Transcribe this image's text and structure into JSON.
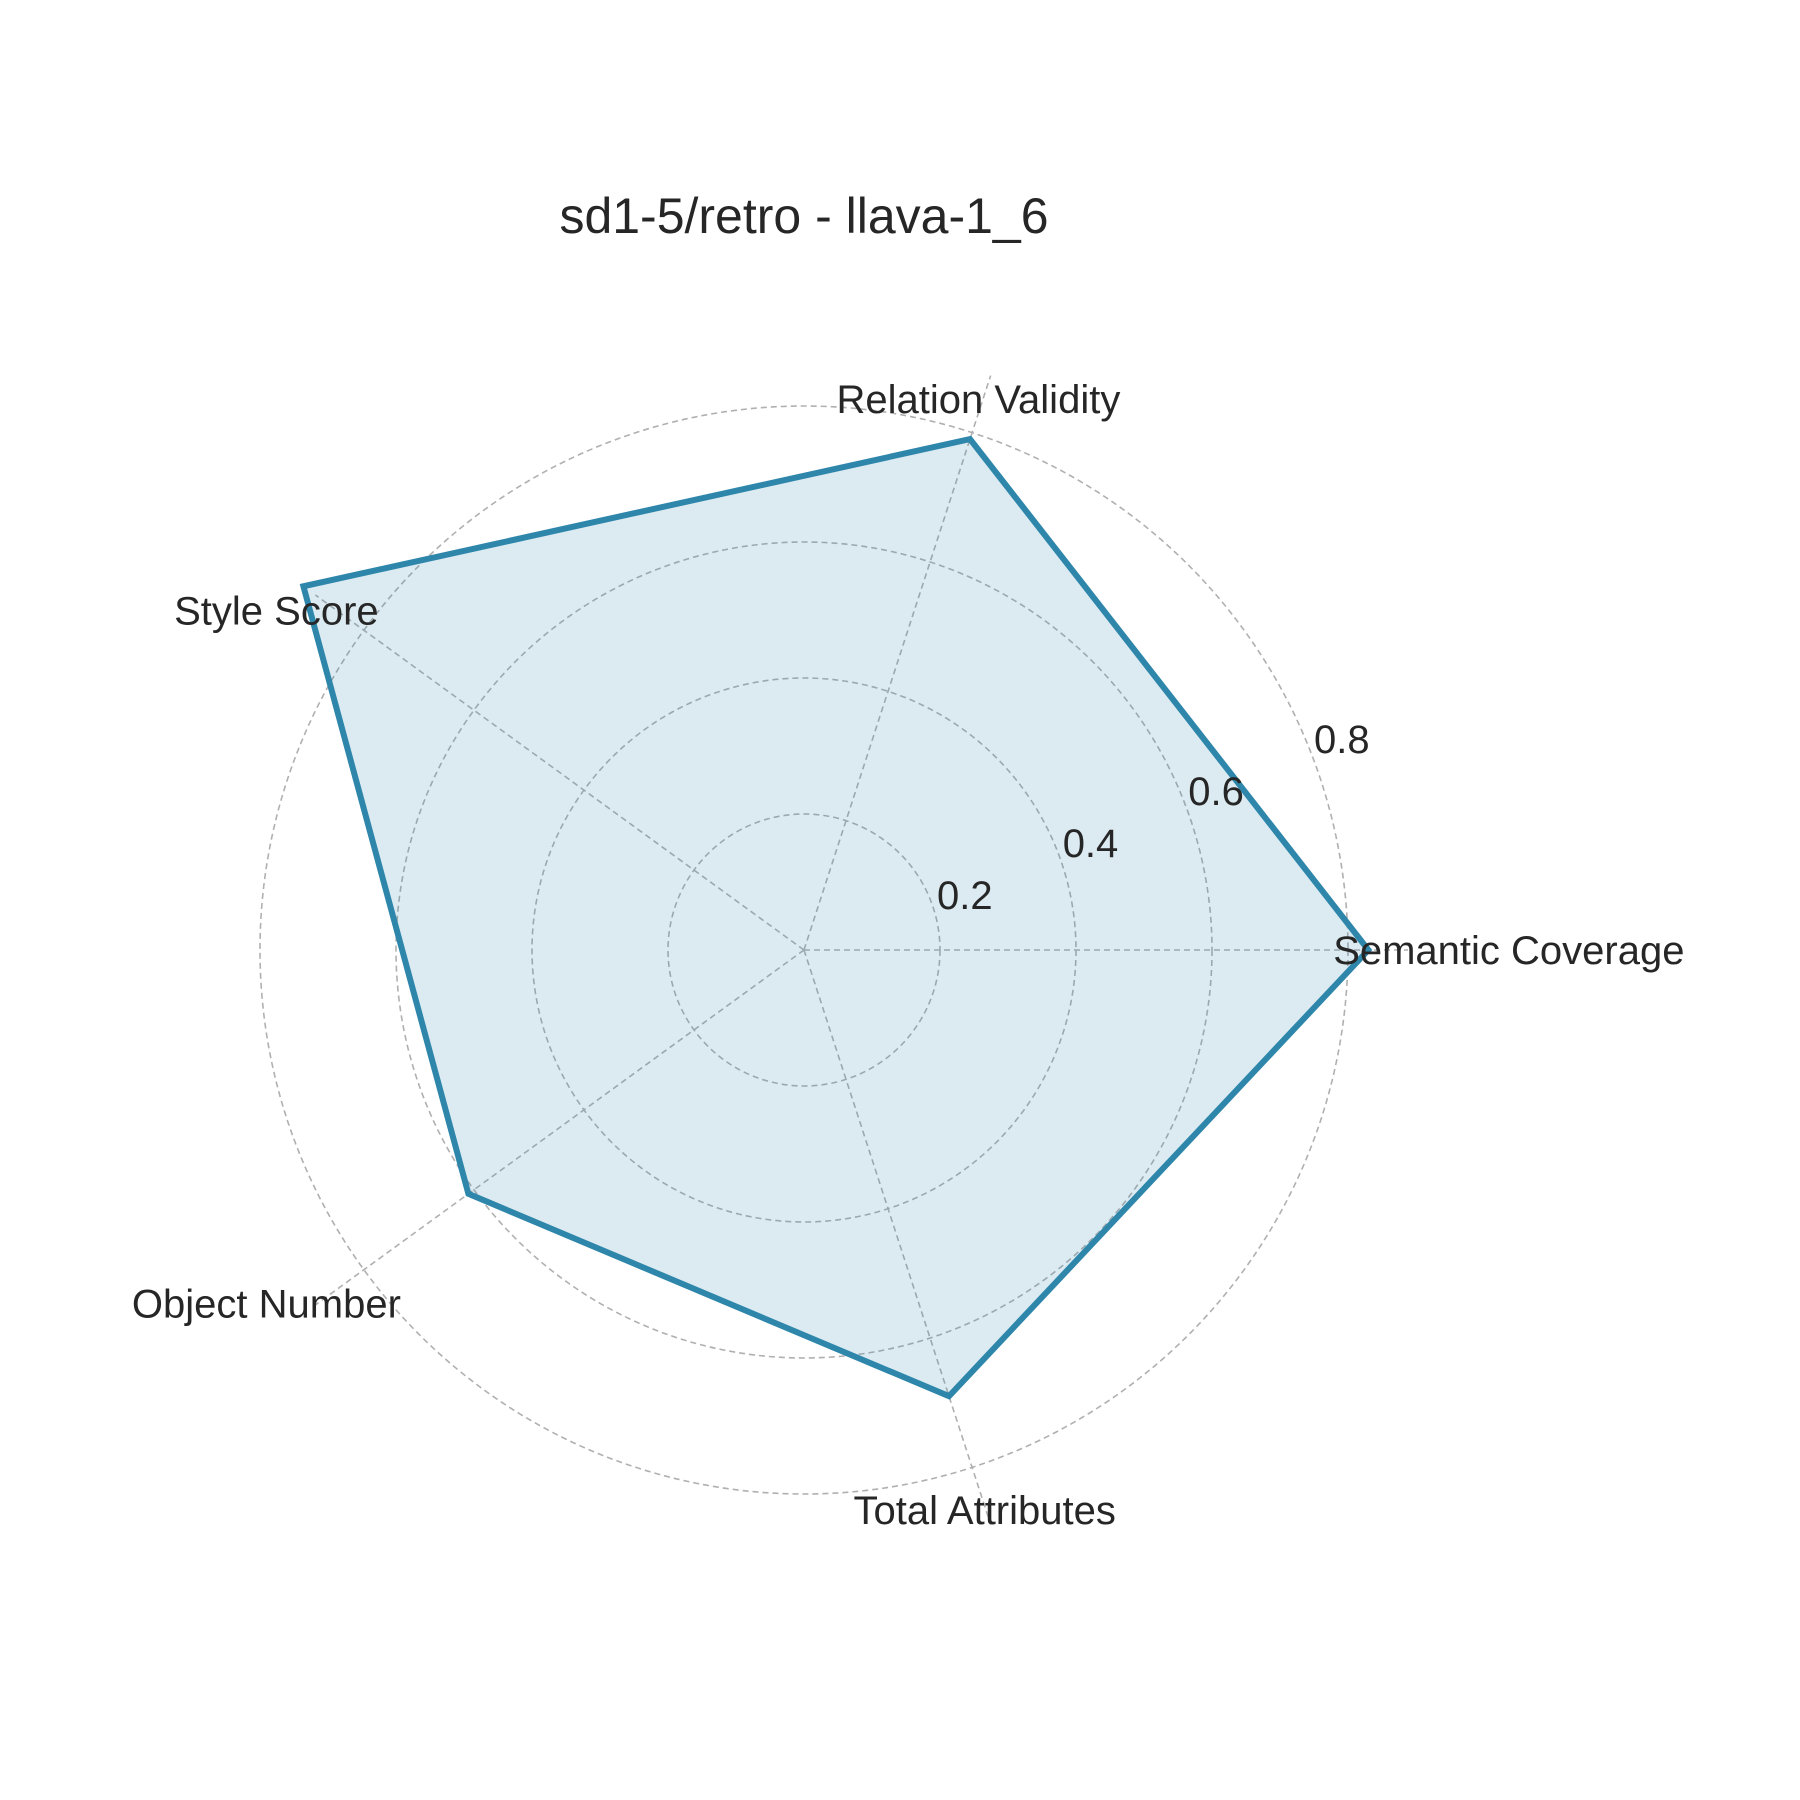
{
  "chart_data": {
    "type": "radar",
    "title": "sd1-5/retro - llava-1_6",
    "axes": [
      "Semantic Coverage",
      "Relation Validity",
      "Style Score",
      "Object Number",
      "Total Attributes"
    ],
    "series": [
      {
        "values": [
          0.83,
          0.79,
          0.91,
          0.61,
          0.69
        ]
      }
    ],
    "radial_ticks": [
      0.2,
      0.4,
      0.6,
      0.8
    ],
    "radial_tick_labels": [
      "0.2",
      "0.4",
      "0.6",
      "0.8"
    ],
    "rlim": [
      0,
      0.8
    ],
    "grid": true,
    "colors": {
      "series": "#2e86ab",
      "grid": "#b0b0b0",
      "text": "#262626"
    }
  }
}
